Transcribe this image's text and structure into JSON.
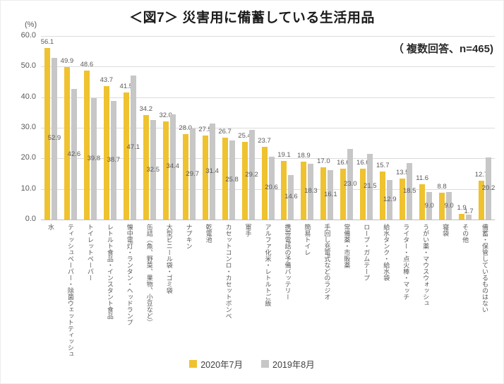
{
  "header": {
    "title": "＜図7＞ 災害用に備蓄している生活用品",
    "note": "（ 複数回答、n=465)"
  },
  "chart_data": {
    "type": "bar",
    "title": "＜図7＞ 災害用に備蓄している生活用品",
    "subtitle": "（ 複数回答、n=465)",
    "unit_label": "(%)",
    "xlabel": "",
    "ylabel": "(%)",
    "ylim": [
      0,
      60
    ],
    "ytick_step": 10,
    "grid": true,
    "legend_position": "bottom",
    "value_label_decimals": 1,
    "categories": [
      "水",
      "ティッシュペーパー・除菌ウェットティッシュ",
      "トイレットペーパー",
      "レトルト食品・インスタント食品",
      "懐中電灯・ランタン・ヘッドランプ",
      "缶詰（魚、野菜、果物、小豆など）",
      "大型ビニール袋・ゴミ袋",
      "ナプキン",
      "乾電池",
      "カセットコンロ・カセットボンベ",
      "軍手",
      "アルファ化米・レトルトご飯",
      "携帯電話の予備バッテリー",
      "簡易トイレ",
      "手回し充電式などのラジオ",
      "常備薬・市販薬",
      "ロープ・ガムテープ",
      "給水タンク・給水袋",
      "ライター・点火棒・マッチ",
      "うがい薬・マウスウォッシュ",
      "寝袋",
      "その他",
      "備蓄・保管しているものはない"
    ],
    "series": [
      {
        "name": "2020年7月",
        "color": "#EFC230",
        "values": [
          56.1,
          49.9,
          48.6,
          43.7,
          41.5,
          34.2,
          32.0,
          28.0,
          27.5,
          26.7,
          25.4,
          23.7,
          19.1,
          18.9,
          17.0,
          16.6,
          16.6,
          15.7,
          13.5,
          11.6,
          8.8,
          1.9,
          12.7
        ]
      },
      {
        "name": "2019年8月",
        "color": "#C7C7C7",
        "values": [
          52.9,
          42.6,
          39.8,
          38.7,
          47.1,
          32.5,
          34.4,
          29.7,
          31.4,
          25.8,
          29.2,
          20.6,
          14.6,
          18.3,
          16.1,
          23.0,
          21.5,
          12.9,
          18.5,
          9.0,
          9.0,
          1.7,
          20.2
        ]
      }
    ]
  }
}
